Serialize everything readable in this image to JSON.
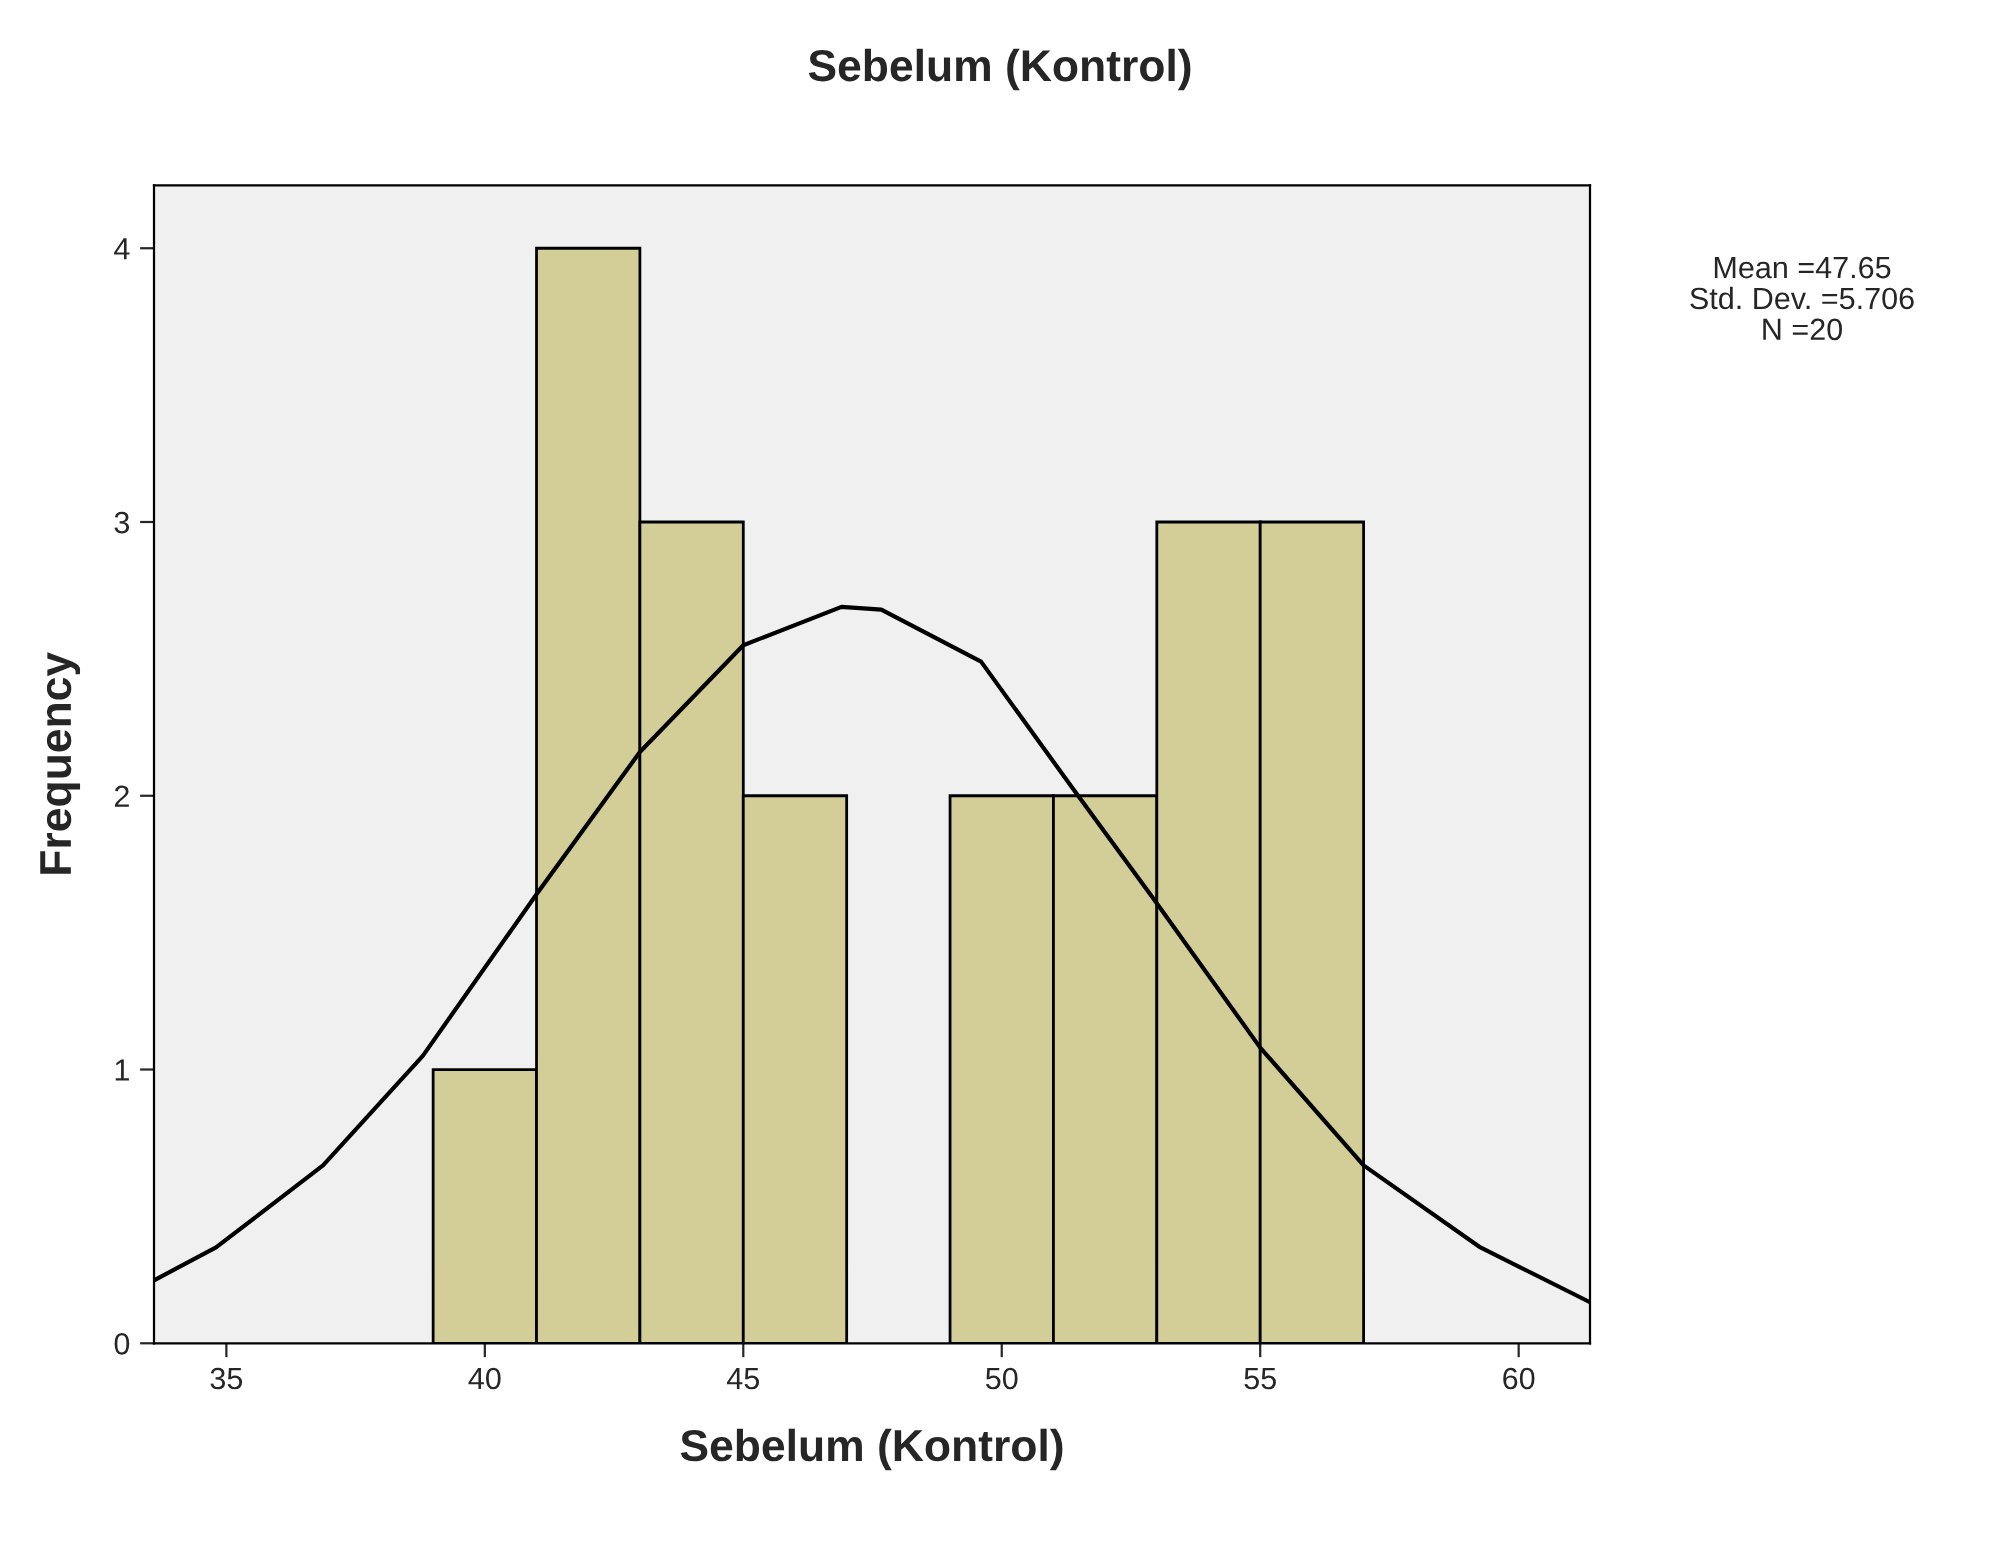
{
  "chart_data": {
    "type": "histogram",
    "title": "Sebelum (Kontrol)",
    "xlabel": "Sebelum (Kontrol)",
    "ylabel": "Frequency",
    "bins": [
      39,
      41,
      43,
      45,
      47,
      49,
      51,
      53,
      55,
      57
    ],
    "values": [
      1,
      4,
      3,
      2,
      0,
      2,
      2,
      3,
      3
    ],
    "color": "#d3ce97",
    "series": [
      {
        "type": "line",
        "color": "#000000",
        "x": [
          33.6,
          34.8,
          36.87,
          38.8,
          41.0,
          43.0,
          45.0,
          46.9,
          47.67,
          49.6,
          51.4,
          52.95,
          55.0,
          57.0,
          59.26,
          61.38
        ],
        "values": [
          0.23,
          0.35,
          0.65,
          1.05,
          1.64,
          2.16,
          2.55,
          2.69,
          2.68,
          2.49,
          2.02,
          1.62,
          1.08,
          0.65,
          0.35,
          0.15
        ]
      }
    ],
    "xlim": [
      33.6,
      61.38
    ],
    "xticks": [
      35,
      40,
      45,
      50,
      55,
      60
    ],
    "ylim": [
      0,
      4.23
    ],
    "yticks": [
      0,
      1,
      2,
      3,
      4
    ],
    "grid": false,
    "legend": false,
    "annotations": [
      "Mean =47.65",
      "Std. Dev. =5.706",
      "N =20"
    ]
  }
}
